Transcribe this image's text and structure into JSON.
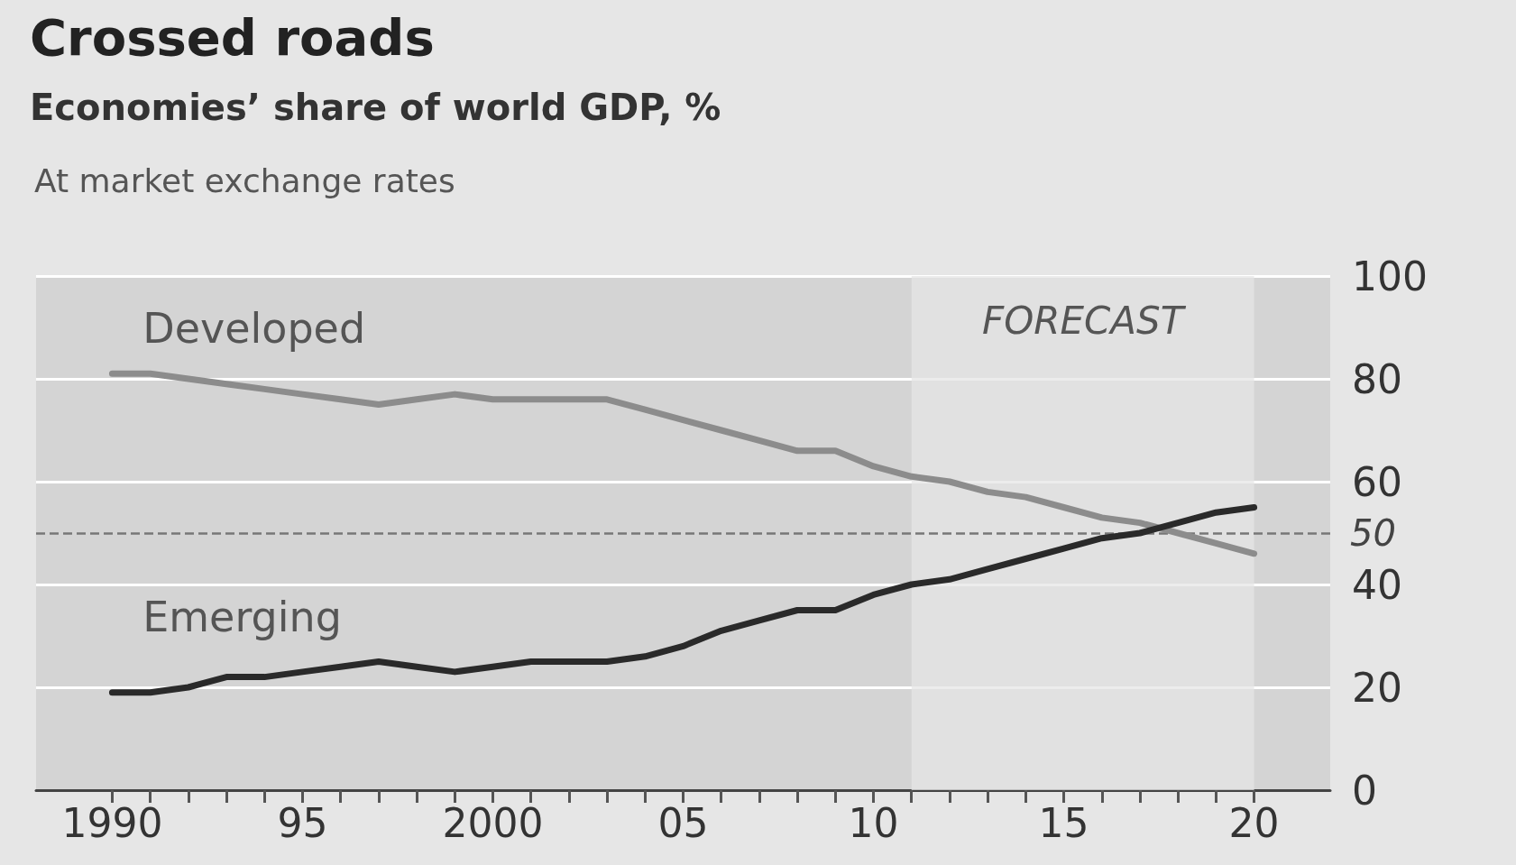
{
  "chart_data": {
    "type": "line",
    "title": "Crossed roads",
    "subtitle": "Economies’ share of world GDP, %",
    "annotations": [
      "At market exchange rates"
    ],
    "x": [
      1990,
      1991,
      1992,
      1993,
      1994,
      1995,
      1996,
      1997,
      1998,
      1999,
      2000,
      2001,
      2002,
      2003,
      2004,
      2005,
      2006,
      2007,
      2008,
      2009,
      2010,
      2011,
      2012,
      2013,
      2014,
      2015,
      2016,
      2017,
      2018,
      2019,
      2020
    ],
    "series": [
      {
        "name": "Developed",
        "color": "#8c8c8c",
        "values": [
          81,
          81,
          80,
          79,
          78,
          77,
          76,
          75,
          76,
          77,
          76,
          76,
          76,
          76,
          74,
          72,
          70,
          68,
          66,
          66,
          63,
          61,
          60,
          58,
          57,
          55,
          53,
          52,
          50,
          48,
          46
        ]
      },
      {
        "name": "Emerging",
        "color": "#2a2a2a",
        "values": [
          19,
          19,
          20,
          22,
          22,
          23,
          24,
          25,
          24,
          23,
          24,
          25,
          25,
          25,
          26,
          28,
          31,
          33,
          35,
          35,
          38,
          40,
          41,
          43,
          45,
          47,
          49,
          50,
          52,
          54,
          55
        ]
      }
    ],
    "xlim": [
      1988,
      2022
    ],
    "xticks": [
      {
        "value": 1990,
        "label": "1990"
      },
      {
        "value": 1991,
        "label": null
      },
      {
        "value": 1992,
        "label": null
      },
      {
        "value": 1993,
        "label": null
      },
      {
        "value": 1994,
        "label": null
      },
      {
        "value": 1995,
        "label": "95"
      },
      {
        "value": 1996,
        "label": null
      },
      {
        "value": 1997,
        "label": null
      },
      {
        "value": 1998,
        "label": null
      },
      {
        "value": 1999,
        "label": null
      },
      {
        "value": 2000,
        "label": "2000"
      },
      {
        "value": 2001,
        "label": null
      },
      {
        "value": 2002,
        "label": null
      },
      {
        "value": 2003,
        "label": null
      },
      {
        "value": 2004,
        "label": null
      },
      {
        "value": 2005,
        "label": "05"
      },
      {
        "value": 2006,
        "label": null
      },
      {
        "value": 2007,
        "label": null
      },
      {
        "value": 2008,
        "label": null
      },
      {
        "value": 2009,
        "label": null
      },
      {
        "value": 2010,
        "label": "10"
      },
      {
        "value": 2011,
        "label": null
      },
      {
        "value": 2012,
        "label": null
      },
      {
        "value": 2013,
        "label": null
      },
      {
        "value": 2014,
        "label": null
      },
      {
        "value": 2015,
        "label": "15"
      },
      {
        "value": 2016,
        "label": null
      },
      {
        "value": 2017,
        "label": null
      },
      {
        "value": 2018,
        "label": null
      },
      {
        "value": 2019,
        "label": null
      },
      {
        "value": 2020,
        "label": "20"
      }
    ],
    "ylim": [
      0,
      100
    ],
    "yticks": [
      0,
      20,
      40,
      60,
      80,
      100
    ],
    "ref_lines": [
      {
        "axis": "y",
        "value": 50,
        "label": "50",
        "color": "#777777",
        "line_style": "dashed"
      }
    ],
    "bands": [
      {
        "axis": "x",
        "from": 2011,
        "to": 2020,
        "label": "FORECAST",
        "color": "#e6e6e6"
      }
    ],
    "grid": "y",
    "legend": false,
    "marker": "none",
    "line_style": "solid"
  }
}
